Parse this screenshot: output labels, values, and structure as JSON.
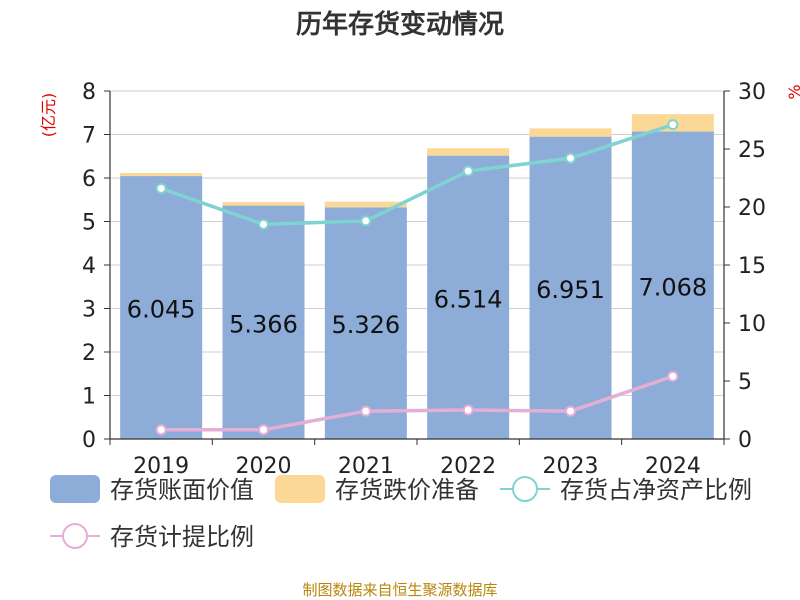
{
  "chart_data": {
    "type": "bar",
    "title": "历年存货变动情况",
    "left_unit": "(亿元)",
    "right_unit": "%",
    "categories": [
      "2019",
      "2020",
      "2021",
      "2022",
      "2023",
      "2024"
    ],
    "y_left": {
      "min": 0,
      "max": 8,
      "ticks": [
        "0",
        "1",
        "2",
        "3",
        "4",
        "5",
        "6",
        "7",
        "8"
      ]
    },
    "y_right": {
      "min": 0,
      "max": 30,
      "ticks": [
        "0",
        "5",
        "10",
        "15",
        "20",
        "25",
        "30"
      ]
    },
    "series": [
      {
        "name": "存货账面价值",
        "type": "bar",
        "stack": "inv",
        "axis": "left",
        "color": "#8eacd8",
        "values": [
          6.045,
          5.366,
          5.326,
          6.514,
          6.951,
          7.068
        ],
        "labels": [
          "6.045",
          "5.366",
          "5.326",
          "6.514",
          "6.951",
          "7.068"
        ]
      },
      {
        "name": "存货跌价准备",
        "type": "bar",
        "stack": "inv",
        "axis": "left",
        "color": "#fcd896",
        "values": [
          0.07,
          0.08,
          0.13,
          0.17,
          0.19,
          0.4
        ]
      },
      {
        "name": "存货占净资产比例",
        "type": "line",
        "axis": "right",
        "color": "#7fd3d0",
        "values": [
          21.6,
          18.5,
          18.8,
          23.1,
          24.2,
          27.1
        ]
      },
      {
        "name": "存货计提比例",
        "type": "line",
        "axis": "right",
        "color": "#e4aed6",
        "values": [
          0.8,
          0.8,
          2.4,
          2.5,
          2.4,
          5.4
        ]
      }
    ],
    "grid": true,
    "legend_position": "bottom",
    "source": "制图数据来自恒生聚源数据库"
  }
}
